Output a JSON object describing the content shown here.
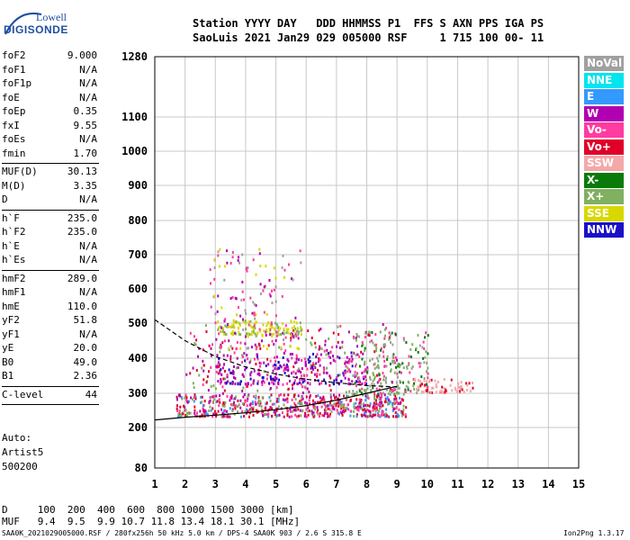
{
  "logo": {
    "line1": "Lowell",
    "line2": "DIGISONDE"
  },
  "header": {
    "line1": "Station YYYY DAY   DDD HHMMSS P1  FFS S AXN PPS IGA PS",
    "line2": "SaoLuis 2021 Jan29 029 005000 RSF     1 715 100 00- 11"
  },
  "params": [
    {
      "name": "foF2",
      "value": "9.000"
    },
    {
      "name": "foF1",
      "value": "N/A"
    },
    {
      "name": "foF1p",
      "value": "N/A"
    },
    {
      "name": "foE",
      "value": "N/A"
    },
    {
      "name": "foEp",
      "value": "0.35"
    },
    {
      "name": "fxI",
      "value": "9.55"
    },
    {
      "name": "foEs",
      "value": "N/A"
    },
    {
      "name": "fmin",
      "value": "1.70"
    },
    {
      "name": "MUF(D)",
      "value": "30.13"
    },
    {
      "name": "M(D)",
      "value": "3.35"
    },
    {
      "name": "D",
      "value": "N/A"
    },
    {
      "name": "h`F",
      "value": "235.0"
    },
    {
      "name": "h`F2",
      "value": "235.0"
    },
    {
      "name": "h`E",
      "value": "N/A"
    },
    {
      "name": "h`Es",
      "value": "N/A"
    },
    {
      "name": "hmF2",
      "value": "289.0"
    },
    {
      "name": "hmF1",
      "value": "N/A"
    },
    {
      "name": "hmE",
      "value": "110.0"
    },
    {
      "name": "yF2",
      "value": "51.8"
    },
    {
      "name": "yF1",
      "value": "N/A"
    },
    {
      "name": "yE",
      "value": "20.0"
    },
    {
      "name": "B0",
      "value": "49.0"
    },
    {
      "name": "B1",
      "value": "2.36"
    },
    {
      "name": "C-level",
      "value": "44"
    }
  ],
  "auto": {
    "line1": "Auto:",
    "line2": "Artist5",
    "line3": "500200"
  },
  "legend": [
    {
      "label": "NoVal",
      "color": "#a0a0a0"
    },
    {
      "label": "NNE",
      "color": "#00e5ee"
    },
    {
      "label": "E",
      "color": "#3399ff"
    },
    {
      "label": "W",
      "color": "#b000b0"
    },
    {
      "label": "Vo-",
      "color": "#ff3ca0"
    },
    {
      "label": "Vo+",
      "color": "#e0002a"
    },
    {
      "label": "SSW",
      "color": "#f4a8a8"
    },
    {
      "label": "X-",
      "color": "#0a7a0a"
    },
    {
      "label": "X+",
      "color": "#80b060"
    },
    {
      "label": "SSE",
      "color": "#d8d800"
    },
    {
      "label": "NNW",
      "color": "#1a10c8"
    }
  ],
  "bottom": {
    "line1": "D     100  200  400  600  800 1000 1500 3000 [km]",
    "line2": "MUF   9.4  9.5  9.9 10.7 11.8 13.4 18.1 30.1 [MHz]"
  },
  "footer": {
    "left": "SAA0K_2021029005000.RSF / 280fx256h 50 kHz 5.0 km / DPS-4 SAA0K 903 / 2.6 S 315.8 E",
    "right": "Ion2Png 1.3.17"
  },
  "chart_data": {
    "type": "scatter",
    "xlim": [
      1,
      15
    ],
    "ylim": [
      80,
      1280
    ],
    "x_ticks": [
      1,
      2,
      3,
      4,
      5,
      6,
      7,
      8,
      9,
      10,
      11,
      12,
      13,
      14,
      15
    ],
    "y_ticks": [
      80,
      200,
      300,
      400,
      500,
      600,
      700,
      800,
      900,
      1000,
      1100,
      1280
    ],
    "y_scale": "nonlinear",
    "grid": true,
    "legend_position": "right",
    "echo_clusters": [
      {
        "name": "Vo+",
        "x_range": [
          1.7,
          9.3
        ],
        "y_range": [
          235,
          300
        ]
      },
      {
        "name": "Vo-",
        "x_range": [
          2.0,
          9.0
        ],
        "y_range": [
          250,
          500
        ]
      },
      {
        "name": "W",
        "x_range": [
          3.0,
          8.0
        ],
        "y_range": [
          330,
          420
        ]
      },
      {
        "name": "SSE",
        "x_range": [
          3.0,
          6.0
        ],
        "y_range": [
          470,
          510
        ]
      },
      {
        "name": "NoVal",
        "x_range": [
          2.8,
          5.8
        ],
        "y_range": [
          430,
          720
        ]
      },
      {
        "name": "X+",
        "x_range": [
          7.5,
          10.0
        ],
        "y_range": [
          300,
          480
        ]
      },
      {
        "name": "SSW",
        "x_range": [
          9.5,
          11.5
        ],
        "y_range": [
          305,
          345
        ]
      }
    ],
    "trace_lower": [
      [
        1,
        222
      ],
      [
        2,
        230
      ],
      [
        3,
        236
      ],
      [
        4,
        243
      ],
      [
        5,
        252
      ],
      [
        6,
        264
      ],
      [
        7,
        280
      ],
      [
        8,
        300
      ],
      [
        8.5,
        310
      ],
      [
        9,
        320
      ]
    ],
    "trace_upper_dashed": [
      [
        1,
        510
      ],
      [
        2,
        450
      ],
      [
        3,
        405
      ],
      [
        4,
        375
      ],
      [
        5,
        355
      ],
      [
        6,
        340
      ],
      [
        7,
        330
      ],
      [
        8,
        322
      ],
      [
        9,
        318
      ]
    ]
  }
}
